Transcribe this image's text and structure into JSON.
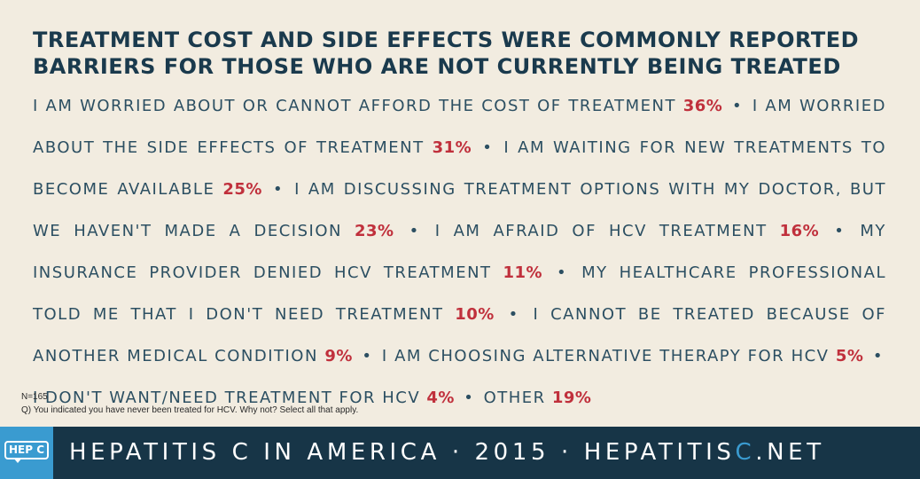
{
  "headline": "TREATMENT COST AND SIDE EFFECTS WERE COMMONLY REPORTED BARRIERS FOR THOSE WHO ARE NOT CURRENTLY BEING TREATED",
  "chart_data": {
    "type": "table",
    "title": "TREATMENT COST AND SIDE EFFECTS WERE COMMONLY REPORTED BARRIERS FOR THOSE WHO ARE NOT CURRENTLY BEING TREATED",
    "categories": [
      "I AM WORRIED ABOUT OR CANNOT AFFORD THE COST OF TREATMENT",
      "I AM WORRIED ABOUT THE SIDE EFFECTS OF TREATMENT",
      "I AM WAITING FOR NEW TREATMENTS TO BECOME AVAILABLE",
      "I AM DISCUSSING TREATMENT OPTIONS WITH MY DOCTOR, BUT WE HAVEN'T MADE A DECISION",
      "I AM AFRAID OF HCV TREATMENT",
      "MY INSURANCE PROVIDER DENIED HCV TREATMENT",
      "MY HEALTHCARE PROFESSIONAL TOLD ME THAT I DON'T NEED TREATMENT",
      "I CANNOT BE TREATED BECAUSE OF ANOTHER MEDICAL CONDITION",
      "I AM CHOOSING ALTERNATIVE THERAPY FOR HCV",
      "I DON'T WANT/NEED TREATMENT FOR HCV",
      "OTHER"
    ],
    "value_labels": [
      "36%",
      "31%",
      "25%",
      "23%",
      "16%",
      "11%",
      "10%",
      "9%",
      "5%",
      "4%",
      "19%"
    ],
    "values": [
      36,
      31,
      25,
      23,
      16,
      11,
      10,
      9,
      5,
      4,
      19
    ],
    "unit": "%"
  },
  "notes": {
    "sample": "N=165",
    "question": "Q) You indicated you have never been treated for HCV. Why not? Select all that apply."
  },
  "footer": {
    "logo": "HEP C",
    "title_main": "HEPATITIS C IN AMERICA · 2015 · HEPATITIS",
    "title_accent": "C",
    "title_end": ".NET"
  },
  "colors": {
    "background": "#f2ece0",
    "headline": "#1a3a4d",
    "body_text": "#2c4f62",
    "percent": "#c0303c",
    "footer_bg": "#173547",
    "accent": "#3a9bd0"
  }
}
